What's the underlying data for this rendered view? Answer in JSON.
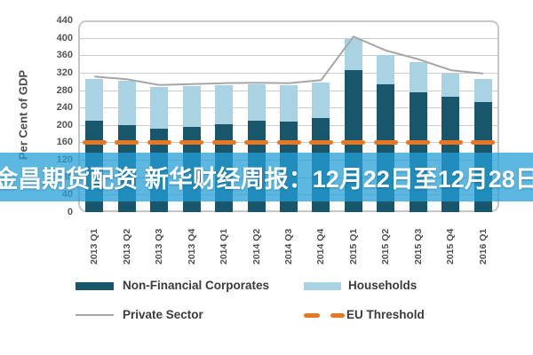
{
  "banner": {
    "text": "金昌期货配资 新华财经周报：12月22日至12月28日"
  },
  "chart_data": {
    "type": "bar",
    "stacked": true,
    "title": "",
    "xlabel": "",
    "ylabel": "Per Cent of GDP",
    "ylim": [
      0,
      440
    ],
    "ytick_step": 40,
    "grid": true,
    "legend_position": "bottom",
    "categories": [
      "2013 Q1",
      "2013 Q2",
      "2013 Q3",
      "2013 Q4",
      "2014 Q1",
      "2014 Q2",
      "2014 Q3",
      "2014 Q4",
      "2015 Q1",
      "2015 Q2",
      "2015 Q3",
      "2015 Q4",
      "2016 Q1"
    ],
    "series": [
      {
        "name": "Non-Financial Corporates",
        "type": "bar",
        "values": [
          210,
          200,
          192,
          195,
          202,
          210,
          208,
          215,
          325,
          293,
          275,
          265,
          252
        ]
      },
      {
        "name": "Households",
        "type": "bar",
        "values": [
          96,
          101,
          95,
          95,
          89,
          83,
          83,
          82,
          75,
          68,
          70,
          52,
          54
        ]
      },
      {
        "name": "Private Sector",
        "type": "line",
        "values": [
          311,
          305,
          292,
          294,
          296,
          297,
          296,
          303,
          403,
          371,
          351,
          326,
          318
        ]
      },
      {
        "name": "EU Threshold",
        "type": "threshold",
        "value": 160
      }
    ]
  },
  "colors": {
    "nfc": "#17566b",
    "households": "#a9d2e2",
    "private_sector": "#a6a6a6",
    "eu_threshold": "#e87722",
    "banner_bg": "rgba(38,160,215,0.75)",
    "banner_text": "#ffffff",
    "grid": "#cccccc",
    "plot_border": "#c6c6c6"
  }
}
